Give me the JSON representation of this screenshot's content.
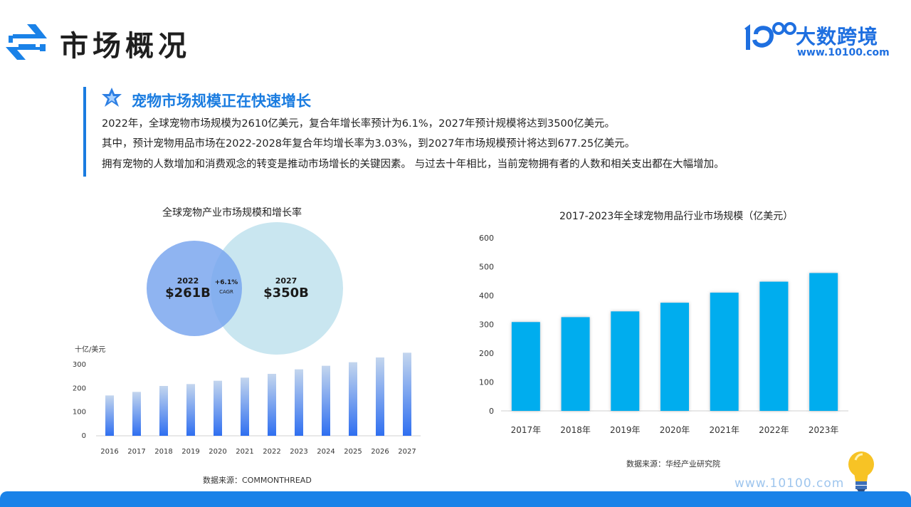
{
  "header": {
    "title": "市场概况",
    "icon": "arrow-swap-icon"
  },
  "brand": {
    "name": "大数跨境",
    "url": "www.10100.com",
    "logo": "10100-logo"
  },
  "intro": {
    "heading": "宠物市场规模正在快速增长",
    "icon": "star-icon",
    "lines": [
      "2022年，全球宠物市场规模为2610亿美元，复合年增长率预计为6.1%，2027年预计规模将达到3500亿美元。",
      "其中，预计宠物用品市场在2022-2028年复合年均增长率为3.03%，到2027年市场规模预计将达到677.25亿美元。",
      "拥有宠物的人数增加和消费观念的转变是推动市场增长的关键因素。 与过去十年相比，当前宠物拥有者的人数和相关支出都在大幅增加。"
    ]
  },
  "colors": {
    "accent": "#1a7ce0",
    "bar_right": "#00adee",
    "bar_left_top": "#c4d6ee",
    "bar_left_bottom": "#2f6ff0"
  },
  "venn": {
    "left": {
      "year": "2022",
      "value": "$261B"
    },
    "right": {
      "year": "2027",
      "value": "$350B"
    },
    "growth": "+6.1%",
    "growth_label": "CAGR"
  },
  "chart_data": [
    {
      "type": "bar",
      "title": "全球宠物产业市场规模和增长率",
      "ylabel": "十亿/美元",
      "categories": [
        "2016",
        "2017",
        "2018",
        "2019",
        "2020",
        "2021",
        "2022",
        "2023",
        "2024",
        "2025",
        "2026",
        "2027"
      ],
      "values": [
        170,
        185,
        210,
        218,
        232,
        245,
        261,
        280,
        295,
        310,
        330,
        350
      ],
      "ylim": [
        0,
        300
      ],
      "yticks": [
        0,
        100,
        200,
        300
      ],
      "grid": false
    },
    {
      "type": "bar",
      "title": "2017-2023年全球宠物用品行业市场规模（亿美元）",
      "categories": [
        "2017年",
        "2018年",
        "2019年",
        "2020年",
        "2021年",
        "2022年",
        "2023年"
      ],
      "values": [
        308,
        325,
        345,
        375,
        410,
        448,
        478
      ],
      "ylim": [
        0,
        600
      ],
      "yticks": [
        0,
        100,
        200,
        300,
        400,
        500,
        600
      ],
      "grid": false
    }
  ],
  "sources": {
    "left": "数据来源：COMMONTHREAD",
    "right": "数据来源：华经产业研究院"
  },
  "footer": {
    "url": "www.10100.com",
    "icon": "lightbulb-icon"
  }
}
